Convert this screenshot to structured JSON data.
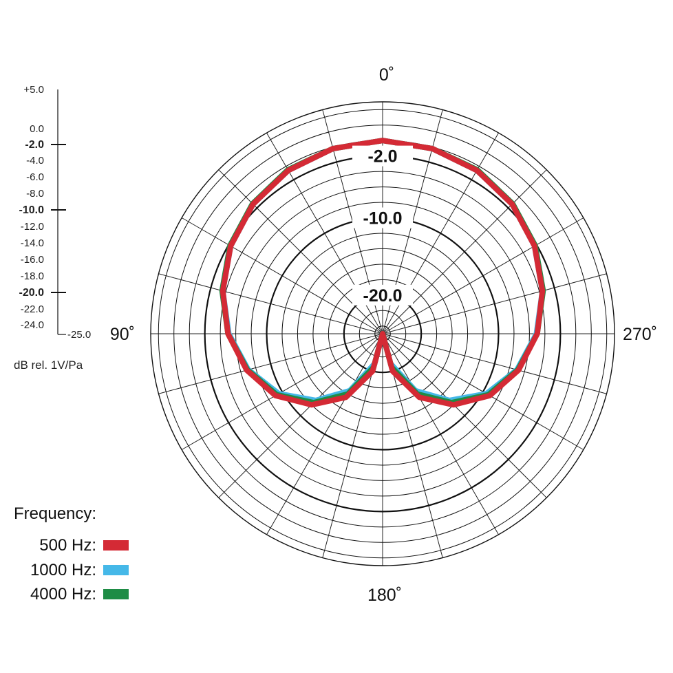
{
  "chart_data": {
    "type": "polar",
    "title": "",
    "r_scale": {
      "min": -25.0,
      "max": 5.0,
      "tick_labels": [
        "+5.0",
        "0.0",
        "-2.0",
        "-4.0",
        "-6.0",
        "-8.0",
        "-10.0",
        "-12.0",
        "-14.0",
        "-16.0",
        "-18.0",
        "-20.0",
        "-22.0",
        "-24.0",
        "-25.0"
      ],
      "bold_ticks": [
        "-2.0",
        "-10.0",
        "-20.0"
      ],
      "unit_label": "dB rel. 1V/Pa"
    },
    "ring_labels": [
      "-2.0",
      "-10.0",
      "-20.0"
    ],
    "angle_labels": [
      {
        "angle": 0,
        "text": "0˚"
      },
      {
        "angle": 90,
        "text": "90˚"
      },
      {
        "angle": 180,
        "text": "180˚"
      },
      {
        "angle": 270,
        "text": "270˚"
      }
    ],
    "legend": {
      "title": "Frequency:",
      "placement": "bottom-left"
    },
    "series": [
      {
        "name": "500 Hz:",
        "color": "#d42a35",
        "points": [
          [
            0,
            0.0
          ],
          [
            15,
            -0.2
          ],
          [
            30,
            -0.6
          ],
          [
            45,
            -1.3
          ],
          [
            60,
            -2.3
          ],
          [
            75,
            -3.6
          ],
          [
            90,
            -5.0
          ],
          [
            105,
            -6.8
          ],
          [
            120,
            -9.0
          ],
          [
            135,
            -12.0
          ],
          [
            150,
            -15.5
          ],
          [
            165,
            -20.0
          ],
          [
            180,
            -25.0
          ],
          [
            195,
            -20.0
          ],
          [
            210,
            -15.5
          ],
          [
            225,
            -12.0
          ],
          [
            240,
            -9.0
          ],
          [
            255,
            -6.8
          ],
          [
            270,
            -5.0
          ],
          [
            285,
            -3.6
          ],
          [
            300,
            -2.3
          ],
          [
            315,
            -1.3
          ],
          [
            330,
            -0.6
          ],
          [
            345,
            -0.2
          ],
          [
            360,
            0.0
          ]
        ]
      },
      {
        "name": "1000 Hz:",
        "color": "#45b8e8",
        "points": [
          [
            0,
            0.0
          ],
          [
            15,
            -0.2
          ],
          [
            30,
            -0.6
          ],
          [
            45,
            -1.3
          ],
          [
            60,
            -2.3
          ],
          [
            75,
            -3.6
          ],
          [
            90,
            -5.1
          ],
          [
            105,
            -7.0
          ],
          [
            120,
            -9.5
          ],
          [
            135,
            -12.8
          ],
          [
            150,
            -16.5
          ],
          [
            165,
            -21.0
          ],
          [
            180,
            -25.0
          ],
          [
            195,
            -21.0
          ],
          [
            210,
            -16.5
          ],
          [
            225,
            -12.8
          ],
          [
            240,
            -9.5
          ],
          [
            255,
            -7.0
          ],
          [
            270,
            -5.1
          ],
          [
            285,
            -3.6
          ],
          [
            300,
            -2.3
          ],
          [
            315,
            -1.3
          ],
          [
            330,
            -0.6
          ],
          [
            345,
            -0.2
          ],
          [
            360,
            0.0
          ]
        ]
      },
      {
        "name": "4000 Hz:",
        "color": "#1e8c45",
        "points": [
          [
            0,
            0.0
          ],
          [
            15,
            -0.2
          ],
          [
            30,
            -0.5
          ],
          [
            45,
            -1.2
          ],
          [
            60,
            -2.2
          ],
          [
            75,
            -3.5
          ],
          [
            90,
            -5.0
          ],
          [
            105,
            -6.9
          ],
          [
            120,
            -9.2
          ],
          [
            135,
            -12.4
          ],
          [
            150,
            -16.0
          ],
          [
            165,
            -20.5
          ],
          [
            180,
            -25.0
          ],
          [
            195,
            -20.5
          ],
          [
            210,
            -16.0
          ],
          [
            225,
            -12.4
          ],
          [
            240,
            -9.2
          ],
          [
            255,
            -6.9
          ],
          [
            270,
            -5.0
          ],
          [
            285,
            -3.5
          ],
          [
            300,
            -2.2
          ],
          [
            315,
            -1.2
          ],
          [
            330,
            -0.5
          ],
          [
            345,
            -0.2
          ],
          [
            360,
            0.0
          ]
        ]
      }
    ]
  }
}
